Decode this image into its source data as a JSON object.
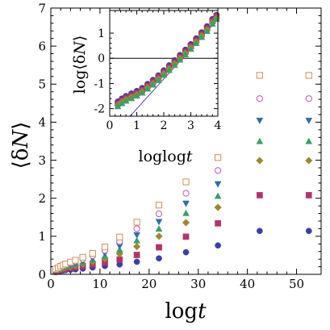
{
  "chart_data": [
    {
      "type": "scatter",
      "xlabel": "log t",
      "ylabel": "⟨δN⟩",
      "xlim": [
        0,
        55
      ],
      "ylim": [
        0,
        7
      ],
      "xticks": [
        "0",
        "10",
        "20",
        "30",
        "40",
        "50"
      ],
      "yticks": [
        "0",
        "1",
        "2",
        "3",
        "4",
        "5",
        "6",
        "7"
      ],
      "x": [
        1,
        1.5,
        2,
        2.5,
        3,
        4,
        5,
        6.5,
        8.5,
        11,
        14,
        17.5,
        22,
        27.5,
        34,
        42.5,
        52.5
      ],
      "series": [
        {
          "marker": "filled-circle",
          "color": "#3b3fa6",
          "values": [
            0.06,
            0.08,
            0.09,
            0.1,
            0.11,
            0.12,
            0.13,
            0.15,
            0.18,
            0.22,
            0.26,
            0.33,
            0.42,
            0.58,
            0.76,
            1.14,
            1.14
          ]
        },
        {
          "marker": "filled-square",
          "color": "#b5336a",
          "values": [
            0.08,
            0.1,
            0.12,
            0.13,
            0.15,
            0.17,
            0.19,
            0.22,
            0.26,
            0.31,
            0.39,
            0.51,
            0.71,
            0.99,
            1.34,
            2.08,
            2.08
          ]
        },
        {
          "marker": "filled-diamond",
          "color": "#9b8a2f",
          "values": [
            0.1,
            0.12,
            0.14,
            0.16,
            0.18,
            0.2,
            0.23,
            0.27,
            0.33,
            0.41,
            0.54,
            0.73,
            1.0,
            1.36,
            1.76,
            2.99,
            2.99
          ]
        },
        {
          "marker": "filled-triangle-up",
          "color": "#3a9f6a",
          "values": [
            0.11,
            0.13,
            0.16,
            0.18,
            0.2,
            0.23,
            0.26,
            0.31,
            0.38,
            0.48,
            0.64,
            0.88,
            1.19,
            1.6,
            2.05,
            3.49,
            3.49
          ]
        },
        {
          "marker": "filled-triangle-down",
          "color": "#2f6fa8",
          "values": [
            0.12,
            0.15,
            0.17,
            0.2,
            0.22,
            0.26,
            0.3,
            0.36,
            0.44,
            0.56,
            0.75,
            1.04,
            1.39,
            1.87,
            2.38,
            4.05,
            4.05
          ]
        },
        {
          "marker": "open-circle",
          "color": "#b85ab8",
          "values": [
            0.13,
            0.16,
            0.19,
            0.22,
            0.25,
            0.29,
            0.34,
            0.4,
            0.49,
            0.63,
            0.86,
            1.2,
            1.59,
            2.13,
            2.73,
            4.62,
            4.62
          ]
        },
        {
          "marker": "open-square",
          "color": "#c8935a",
          "values": [
            0.14,
            0.17,
            0.21,
            0.24,
            0.27,
            0.32,
            0.37,
            0.45,
            0.55,
            0.72,
            0.98,
            1.37,
            1.82,
            2.43,
            3.07,
            5.23,
            5.23
          ]
        }
      ]
    },
    {
      "type": "scatter",
      "xlabel": "loglog t",
      "ylabel": "log⟨δN⟩",
      "xlim": [
        0,
        4
      ],
      "ylim": [
        -2.3,
        1.9
      ],
      "xticks": [
        "0",
        "1",
        "2",
        "3",
        "4"
      ],
      "yticks": [
        "-2",
        "-1",
        "0",
        "1"
      ],
      "x": [
        0.3,
        0.45,
        0.6,
        0.8,
        1.0,
        1.2,
        1.4,
        1.6,
        1.8,
        2.0,
        2.2,
        2.4,
        2.6,
        2.8,
        3.0,
        3.2,
        3.4,
        3.6,
        3.8,
        3.95
      ],
      "reference_lines": [
        {
          "type": "horizontal",
          "y": 0
        },
        {
          "type": "line",
          "color": "#4a4ab0",
          "x": [
            0.5,
            4.0
          ],
          "y": [
            -2.6,
            1.55
          ]
        }
      ],
      "series": [
        {
          "marker": "filled-circle",
          "color": "#3b3fa6",
          "values": [
            -1.72,
            -1.6,
            -1.5,
            -1.4,
            -1.3,
            -1.18,
            -1.02,
            -0.86,
            -0.68,
            -0.48,
            -0.28,
            -0.08,
            0.13,
            0.34,
            0.56,
            0.79,
            1.03,
            1.27,
            1.56,
            1.72
          ]
        },
        {
          "marker": "filled-square",
          "color": "#b5336a",
          "values": [
            -1.8,
            -1.68,
            -1.58,
            -1.48,
            -1.38,
            -1.26,
            -1.1,
            -0.94,
            -0.76,
            -0.56,
            -0.36,
            -0.16,
            0.05,
            0.26,
            0.48,
            0.71,
            0.95,
            1.19,
            1.48,
            1.66
          ]
        },
        {
          "marker": "filled-diamond",
          "color": "#9b8a2f",
          "values": [
            -1.86,
            -1.74,
            -1.64,
            -1.54,
            -1.44,
            -1.32,
            -1.16,
            -1.0,
            -0.82,
            -0.62,
            -0.42,
            -0.22,
            -0.01,
            0.2,
            0.42,
            0.65,
            0.89,
            1.13,
            1.42,
            1.6
          ]
        },
        {
          "marker": "filled-triangle-up",
          "color": "#3a9f6a",
          "values": [
            -1.92,
            -1.8,
            -1.7,
            -1.6,
            -1.5,
            -1.38,
            -1.22,
            -1.06,
            -0.88,
            -0.68,
            -0.48,
            -0.28,
            -0.07,
            0.14,
            0.36,
            0.59,
            0.83,
            1.07,
            1.36,
            1.55
          ]
        }
      ]
    }
  ]
}
